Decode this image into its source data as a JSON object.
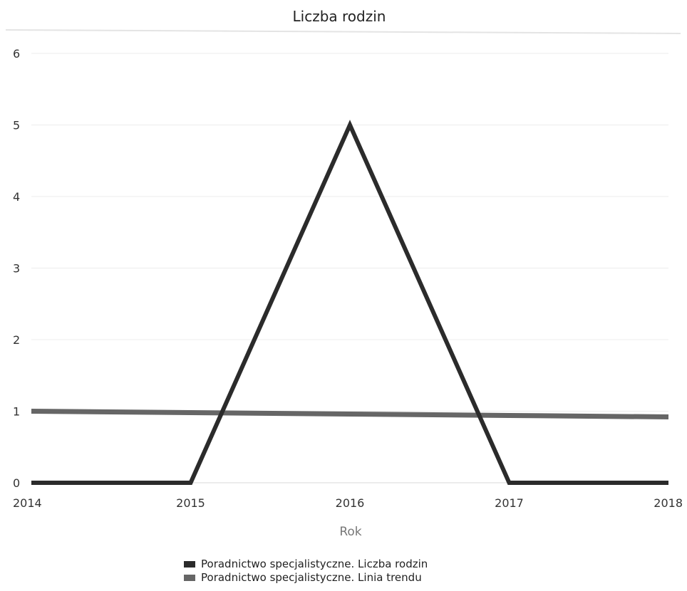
{
  "chart_data": {
    "type": "line",
    "title": "Liczba rodzin",
    "xlabel": "Rok",
    "ylabel": "",
    "x": [
      "2014",
      "2015",
      "2016",
      "2017",
      "2018"
    ],
    "xlim": [
      2014,
      2018
    ],
    "ylim": [
      0,
      6
    ],
    "yticks": [
      "0",
      "1",
      "2",
      "3",
      "4",
      "5",
      "6"
    ],
    "grid": true,
    "legend_position": "bottom",
    "series": [
      {
        "name": "Poradnictwo specjalistyczne. Liczba rodzin",
        "values": [
          0,
          0,
          5,
          0,
          0
        ],
        "color": "#2b2b2b"
      },
      {
        "name": "Poradnictwo specjalistyczne. Linia trendu",
        "values": [
          1.0,
          0.98,
          0.96,
          0.94,
          0.92
        ],
        "color": "#666666"
      }
    ]
  }
}
